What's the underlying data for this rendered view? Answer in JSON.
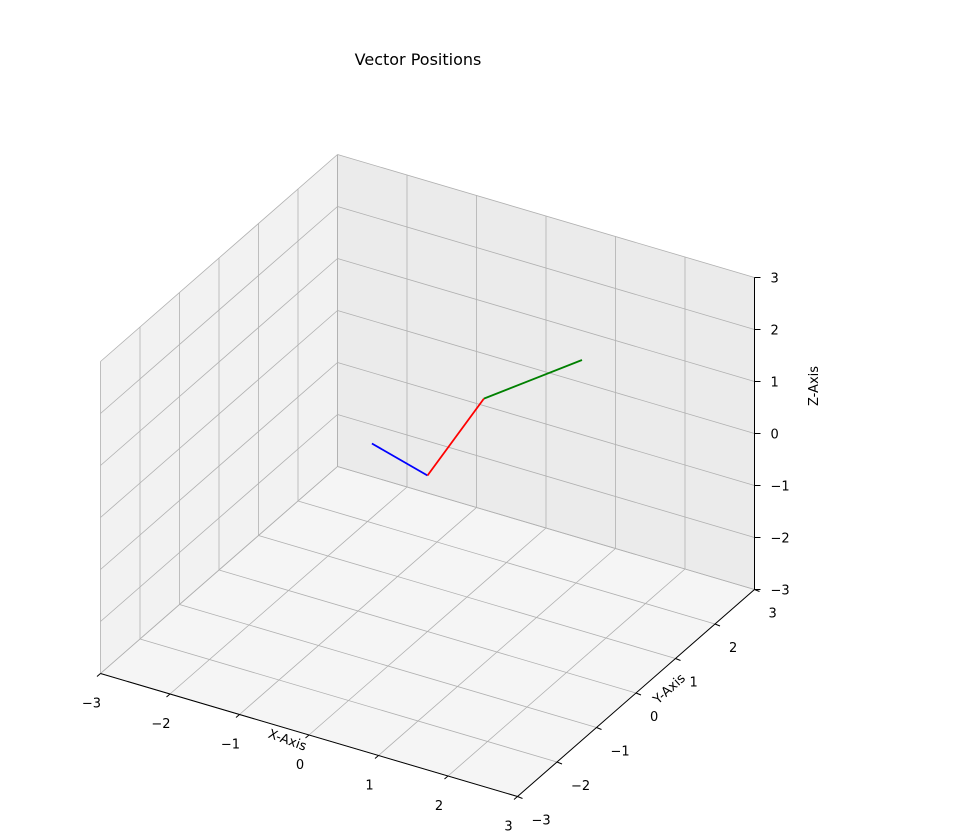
{
  "chart_data": {
    "type": "line",
    "projection": "3d",
    "title": "Vector Positions",
    "xlabel": "X-Axis",
    "ylabel": "Y-Axis",
    "zlabel": "Z-Axis",
    "xlim": [
      -3,
      3
    ],
    "ylim": [
      -3,
      3
    ],
    "zlim": [
      -3,
      3
    ],
    "x_ticks": [
      "−3",
      "−2",
      "−1",
      "0",
      "1",
      "2",
      "3"
    ],
    "y_ticks": [
      "−3",
      "−2",
      "−1",
      "0",
      "1",
      "2",
      "3"
    ],
    "z_ticks": [
      "−3",
      "−2",
      "−1",
      "0",
      "1",
      "2",
      "3"
    ],
    "grid": true,
    "series": [
      {
        "color": "#0000ff",
        "points": [
          [
            0,
            0,
            0
          ],
          [
            -0.8,
            0.0,
            0.3
          ]
        ]
      },
      {
        "color": "#ff0000",
        "points": [
          [
            0,
            0,
            0
          ],
          [
            0.3,
            0.9,
            1.0
          ]
        ]
      },
      {
        "color": "#008000",
        "points": [
          [
            0.3,
            0.9,
            1.0
          ],
          [
            1.2,
            1.8,
            1.5
          ]
        ]
      }
    ]
  }
}
